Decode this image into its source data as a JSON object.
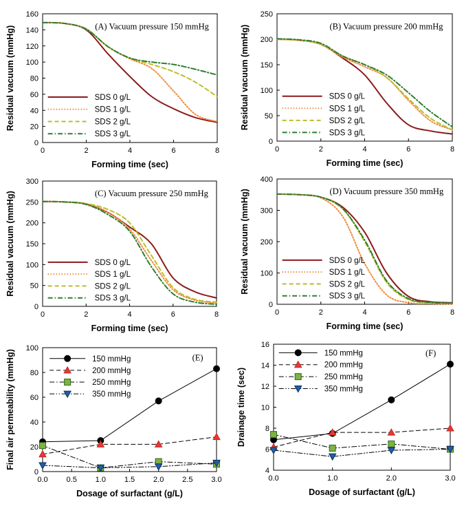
{
  "chart_data": [
    {
      "id": "A",
      "type": "line",
      "title": "(A) Vacuum pressure 150 mmHg",
      "xlabel": "Forming time (sec)",
      "ylabel": "Residual vacuum (mmHg)",
      "xlim": [
        0,
        8
      ],
      "ylim": [
        0,
        160
      ],
      "xticks": [
        0,
        2,
        4,
        6,
        8
      ],
      "yticks": [
        0,
        20,
        40,
        60,
        80,
        100,
        120,
        140,
        160
      ],
      "legend": "bottom-left",
      "x": [
        0,
        1,
        2,
        3,
        4,
        5,
        6,
        7,
        8
      ],
      "series": [
        {
          "name": "SDS 0 g/L",
          "color": "#8B1A1A",
          "style": "solid",
          "values": [
            149,
            148,
            140,
            110,
            82,
            57,
            42,
            31,
            25
          ]
        },
        {
          "name": "SDS 1 g/L",
          "color": "#F28A3C",
          "style": "dotted",
          "values": [
            149,
            148,
            141,
            119,
            104,
            92,
            64,
            35,
            26
          ]
        },
        {
          "name": "SDS 2 g/L",
          "color": "#B9BE2B",
          "style": "dashed",
          "values": [
            149,
            148,
            141,
            119,
            105,
            97,
            88,
            75,
            57
          ]
        },
        {
          "name": "SDS 3 g/L",
          "color": "#2E7D32",
          "style": "dashdot",
          "values": [
            149,
            148,
            141,
            119,
            105,
            100,
            97,
            91,
            84
          ]
        }
      ]
    },
    {
      "id": "B",
      "type": "line",
      "title": "(B) Vacuum pressure 200 mmHg",
      "xlabel": "Forming time (sec)",
      "ylabel": "Residual vacuum (mmHg)",
      "xlim": [
        0,
        8
      ],
      "ylim": [
        0,
        250
      ],
      "xticks": [
        0,
        2,
        4,
        6,
        8
      ],
      "yticks": [
        0,
        50,
        100,
        150,
        200,
        250
      ],
      "legend": "bottom-left",
      "x": [
        0,
        1,
        2,
        3,
        4,
        5,
        6,
        7,
        8
      ],
      "series": [
        {
          "name": "SDS 0 g/L",
          "color": "#8B1A1A",
          "style": "solid",
          "values": [
            200,
            198,
            190,
            163,
            130,
            75,
            32,
            20,
            14
          ]
        },
        {
          "name": "SDS 1 g/L",
          "color": "#F28A3C",
          "style": "dotted",
          "values": [
            200,
            198,
            190,
            165,
            146,
            125,
            80,
            40,
            22
          ]
        },
        {
          "name": "SDS 2 g/L",
          "color": "#B9BE2B",
          "style": "dashed",
          "values": [
            200,
            198,
            190,
            167,
            150,
            125,
            83,
            45,
            22
          ]
        },
        {
          "name": "SDS 3 g/L",
          "color": "#2E7D32",
          "style": "dashdot",
          "values": [
            201,
            199,
            192,
            167,
            150,
            130,
            95,
            58,
            28
          ]
        }
      ]
    },
    {
      "id": "C",
      "type": "line",
      "title": "(C) Vacuum pressure 250 mmHg",
      "xlabel": "Forming time (sec)",
      "ylabel": "Residual vacuum (mmHg)",
      "xlim": [
        0,
        8
      ],
      "ylim": [
        0,
        300
      ],
      "xticks": [
        0,
        2,
        4,
        6,
        8
      ],
      "yticks": [
        0,
        50,
        100,
        150,
        200,
        250,
        300
      ],
      "legend": "bottom-left",
      "x": [
        0,
        1,
        2,
        3,
        4,
        5,
        6,
        7,
        8
      ],
      "series": [
        {
          "name": "SDS 0 g/L",
          "color": "#8B1A1A",
          "style": "solid",
          "values": [
            251,
            250,
            245,
            225,
            190,
            150,
            68,
            35,
            20
          ]
        },
        {
          "name": "SDS 1 g/L",
          "color": "#F28A3C",
          "style": "dotted",
          "values": [
            251,
            250,
            246,
            225,
            185,
            110,
            40,
            15,
            8
          ]
        },
        {
          "name": "SDS 2 g/L",
          "color": "#B9BE2B",
          "style": "dashed",
          "values": [
            251,
            250,
            246,
            232,
            200,
            122,
            45,
            17,
            10
          ]
        },
        {
          "name": "SDS 3 g/L",
          "color": "#2E7D32",
          "style": "dashdot",
          "values": [
            251,
            250,
            244,
            220,
            180,
            95,
            30,
            10,
            5
          ]
        }
      ]
    },
    {
      "id": "D",
      "type": "line",
      "title": "(D) Vacuum pressure 350 mmHg",
      "xlabel": "Forming time (sec)",
      "ylabel": "Residual vacuum (mmHg)",
      "xlim": [
        0,
        8
      ],
      "ylim": [
        0,
        400
      ],
      "xticks": [
        0,
        2,
        4,
        6,
        8
      ],
      "yticks": [
        0,
        100,
        200,
        300,
        400
      ],
      "legend": "bottom-left",
      "x": [
        0,
        1,
        2,
        3,
        4,
        5,
        6,
        7,
        8
      ],
      "series": [
        {
          "name": "SDS 0 g/L",
          "color": "#8B1A1A",
          "style": "solid",
          "values": [
            352,
            350,
            342,
            310,
            230,
            100,
            25,
            8,
            5
          ]
        },
        {
          "name": "SDS 1 g/L",
          "color": "#F28A3C",
          "style": "dotted",
          "values": [
            352,
            350,
            340,
            280,
            130,
            30,
            5,
            2,
            1
          ]
        },
        {
          "name": "SDS 2 g/L",
          "color": "#B9BE2B",
          "style": "dashed",
          "values": [
            352,
            350,
            342,
            305,
            200,
            70,
            15,
            5,
            3
          ]
        },
        {
          "name": "SDS 3 g/L",
          "color": "#2E7D32",
          "style": "dashdot",
          "values": [
            352,
            350,
            342,
            305,
            205,
            75,
            18,
            6,
            4
          ]
        }
      ]
    },
    {
      "id": "E",
      "type": "line",
      "title": "(E)",
      "xlabel": "Dosage of surfactant (g/L)",
      "ylabel": "Final air permeability (mmHg)",
      "xlim": [
        0,
        3
      ],
      "ylim": [
        0,
        100
      ],
      "xticks": [
        0.0,
        0.5,
        1.0,
        1.5,
        2.0,
        2.5,
        3.0
      ],
      "yticks": [
        0,
        20,
        40,
        60,
        80,
        100
      ],
      "legend": "top-left",
      "x": [
        0,
        1,
        2,
        3
      ],
      "series": [
        {
          "name": "150 mmHg",
          "marker": "circle",
          "color": "#000000",
          "fill": "#000000",
          "style": "solid",
          "values": [
            24,
            25,
            57,
            83
          ]
        },
        {
          "name": "200 mmHg",
          "marker": "triangle-up",
          "color": "#C62828",
          "fill": "#E53935",
          "style": "dashed",
          "values": [
            14,
            22,
            22,
            28
          ]
        },
        {
          "name": "250 mmHg",
          "marker": "square",
          "color": "#33691E",
          "fill": "#7CB342",
          "style": "dashdot",
          "values": [
            21,
            3,
            8,
            6
          ]
        },
        {
          "name": "350 mmHg",
          "marker": "triangle-down",
          "color": "#0D2E5C",
          "fill": "#1F5FA8",
          "style": "dashdotdot",
          "values": [
            5,
            3,
            4,
            7
          ]
        }
      ]
    },
    {
      "id": "F",
      "type": "line",
      "title": "(F)",
      "xlabel": "Dosage of surfactant (g/L)",
      "ylabel": "Drainage time (sec)",
      "xlim": [
        0,
        3
      ],
      "ylim": [
        4,
        16
      ],
      "xticks": [
        0.0,
        1.0,
        2.0,
        3.0
      ],
      "yticks": [
        4,
        6,
        8,
        10,
        12,
        14,
        16
      ],
      "legend": "top-left",
      "x": [
        0,
        1,
        2,
        3
      ],
      "series": [
        {
          "name": "150 mmHg",
          "marker": "circle",
          "color": "#000000",
          "fill": "#000000",
          "style": "solid",
          "values": [
            6.9,
            7.5,
            10.7,
            14.1
          ]
        },
        {
          "name": "200 mmHg",
          "marker": "triangle-up",
          "color": "#C62828",
          "fill": "#E53935",
          "style": "dashed",
          "values": [
            6.2,
            7.6,
            7.6,
            8.0
          ]
        },
        {
          "name": "250 mmHg",
          "marker": "square",
          "color": "#33691E",
          "fill": "#7CB342",
          "style": "dashdot",
          "values": [
            7.4,
            6.1,
            6.5,
            6.0
          ]
        },
        {
          "name": "350 mmHg",
          "marker": "triangle-down",
          "color": "#0D2E5C",
          "fill": "#1F5FA8",
          "style": "dashdotdot",
          "values": [
            5.9,
            5.3,
            5.9,
            6.0
          ]
        }
      ]
    }
  ]
}
